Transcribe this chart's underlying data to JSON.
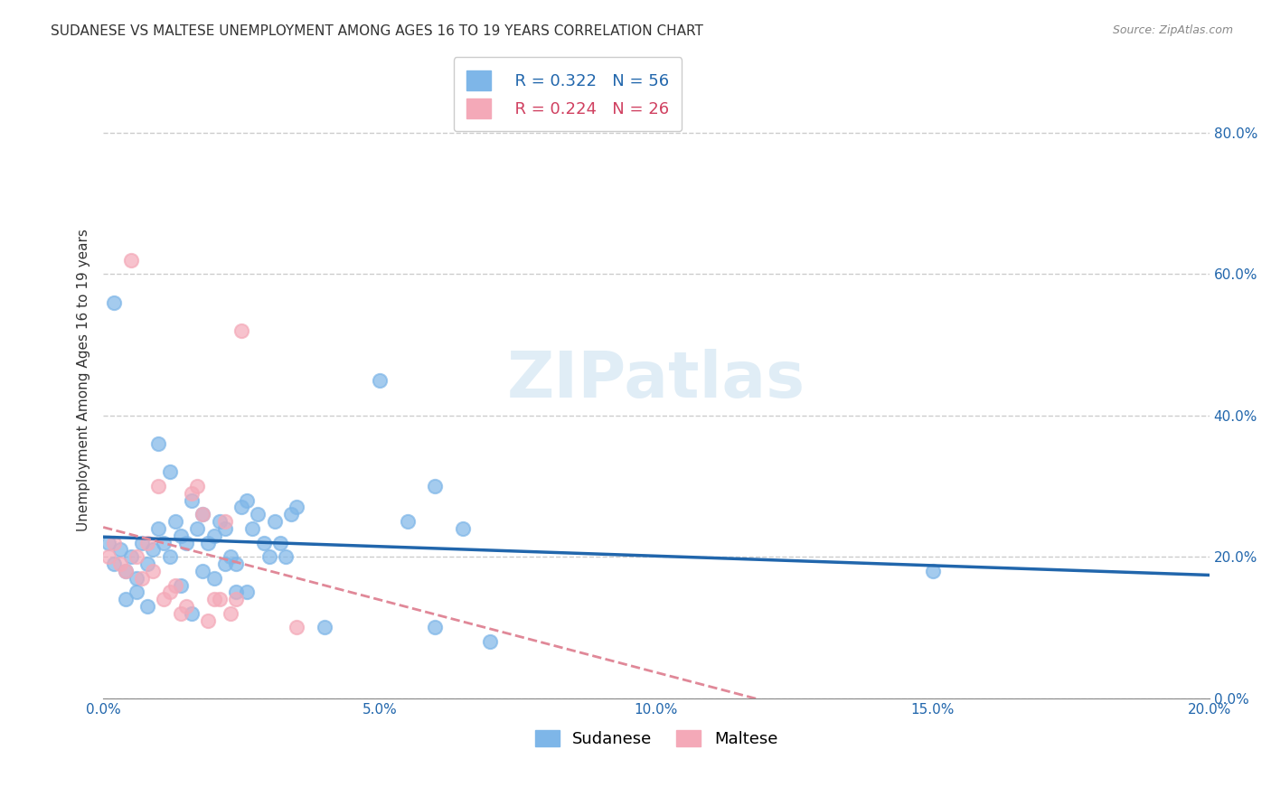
{
  "title": "SUDANESE VS MALTESE UNEMPLOYMENT AMONG AGES 16 TO 19 YEARS CORRELATION CHART",
  "source": "Source: ZipAtlas.com",
  "ylabel": "Unemployment Among Ages 16 to 19 years",
  "xlim": [
    0.0,
    0.2
  ],
  "ylim": [
    0.0,
    0.9
  ],
  "xticks": [
    0.0,
    0.05,
    0.1,
    0.15,
    0.2
  ],
  "yticks_right": [
    0.0,
    0.2,
    0.4,
    0.6,
    0.8
  ],
  "grid_color": "#cccccc",
  "background_color": "#ffffff",
  "watermark": "ZIPatlas",
  "legend_r1": "R = 0.322",
  "legend_n1": "N = 56",
  "legend_r2": "R = 0.224",
  "legend_n2": "N = 26",
  "sudanese_color": "#7eb6e8",
  "maltese_color": "#f4a9b8",
  "trend_blue": "#2166ac",
  "trend_pink": "#e08898",
  "sudanese_label": "Sudanese",
  "maltese_label": "Maltese",
  "sudanese_x": [
    0.001,
    0.002,
    0.003,
    0.004,
    0.005,
    0.006,
    0.007,
    0.008,
    0.009,
    0.01,
    0.011,
    0.012,
    0.013,
    0.014,
    0.015,
    0.016,
    0.017,
    0.018,
    0.019,
    0.02,
    0.021,
    0.022,
    0.023,
    0.024,
    0.025,
    0.026,
    0.027,
    0.028,
    0.029,
    0.03,
    0.031,
    0.032,
    0.033,
    0.034,
    0.035,
    0.05,
    0.055,
    0.06,
    0.065,
    0.07,
    0.002,
    0.004,
    0.006,
    0.008,
    0.01,
    0.012,
    0.014,
    0.016,
    0.018,
    0.02,
    0.022,
    0.024,
    0.026,
    0.15,
    0.04,
    0.06
  ],
  "sudanese_y": [
    0.22,
    0.19,
    0.21,
    0.18,
    0.2,
    0.17,
    0.22,
    0.19,
    0.21,
    0.24,
    0.22,
    0.2,
    0.25,
    0.23,
    0.22,
    0.28,
    0.24,
    0.26,
    0.22,
    0.23,
    0.25,
    0.24,
    0.2,
    0.19,
    0.27,
    0.28,
    0.24,
    0.26,
    0.22,
    0.2,
    0.25,
    0.22,
    0.2,
    0.26,
    0.27,
    0.45,
    0.25,
    0.3,
    0.24,
    0.08,
    0.56,
    0.14,
    0.15,
    0.13,
    0.36,
    0.32,
    0.16,
    0.12,
    0.18,
    0.17,
    0.19,
    0.15,
    0.15,
    0.18,
    0.1,
    0.1
  ],
  "maltese_x": [
    0.001,
    0.002,
    0.003,
    0.004,
    0.005,
    0.006,
    0.007,
    0.008,
    0.009,
    0.01,
    0.011,
    0.012,
    0.013,
    0.014,
    0.015,
    0.016,
    0.017,
    0.018,
    0.019,
    0.02,
    0.021,
    0.022,
    0.023,
    0.024,
    0.025,
    0.035
  ],
  "maltese_y": [
    0.2,
    0.22,
    0.19,
    0.18,
    0.62,
    0.2,
    0.17,
    0.22,
    0.18,
    0.3,
    0.14,
    0.15,
    0.16,
    0.12,
    0.13,
    0.29,
    0.3,
    0.26,
    0.11,
    0.14,
    0.14,
    0.25,
    0.12,
    0.14,
    0.52,
    0.1
  ],
  "title_fontsize": 11,
  "axis_label_fontsize": 11,
  "tick_fontsize": 11,
  "legend_fontsize": 13,
  "watermark_fontsize": 52,
  "marker_size": 120
}
